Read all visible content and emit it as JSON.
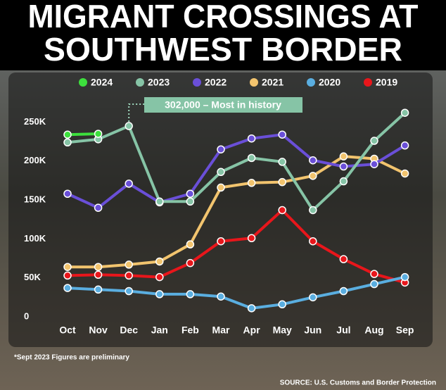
{
  "chart_data": {
    "type": "line",
    "title": [
      "MIGRANT CROSSINGS AT",
      "SOUTHWEST BORDER"
    ],
    "categories": [
      "Oct",
      "Nov",
      "Dec",
      "Jan",
      "Feb",
      "Mar",
      "Apr",
      "May",
      "Jun",
      "Jul",
      "Aug",
      "Sep"
    ],
    "series": [
      {
        "name": "2024",
        "color": "#3de03d",
        "values": [
          234000,
          235000,
          null,
          null,
          null,
          null,
          null,
          null,
          null,
          null,
          null,
          null
        ]
      },
      {
        "name": "2023",
        "color": "#86c4a6",
        "values": [
          224000,
          228000,
          245000,
          148000,
          148000,
          186000,
          204000,
          199000,
          137000,
          174000,
          226000,
          262000
        ]
      },
      {
        "name": "2022",
        "color": "#6a4fd8",
        "values": [
          158000,
          140000,
          171000,
          147000,
          158000,
          215000,
          229000,
          234000,
          201000,
          193000,
          196000,
          220000
        ]
      },
      {
        "name": "2021",
        "color": "#f2c46e",
        "values": [
          64000,
          64000,
          67000,
          71000,
          93000,
          166000,
          172000,
          173000,
          181000,
          206000,
          203000,
          184000
        ]
      },
      {
        "name": "2020",
        "color": "#5aaee0",
        "values": [
          37000,
          35000,
          33000,
          29000,
          29000,
          26000,
          11000,
          16000,
          25000,
          33000,
          42000,
          51000
        ]
      },
      {
        "name": "2019",
        "color": "#e8161b",
        "values": [
          53000,
          54000,
          53000,
          51000,
          69000,
          97000,
          101000,
          137000,
          97000,
          74000,
          55000,
          44000
        ]
      }
    ],
    "ylim": [
      0,
      280000
    ],
    "yticks": [
      0,
      {
        "value": 50000,
        "label": "50K"
      },
      {
        "value": 100000,
        "label": "100K"
      },
      {
        "value": 150000,
        "label": "150K"
      },
      {
        "value": 200000,
        "label": "200K"
      },
      {
        "value": 250000,
        "label": "250K"
      }
    ],
    "annotation": "302,000 – Most in history",
    "footnote": "*Sept 2023 Figures are preliminary",
    "source": "SOURCE: U.S. Customs and Border Protection"
  }
}
